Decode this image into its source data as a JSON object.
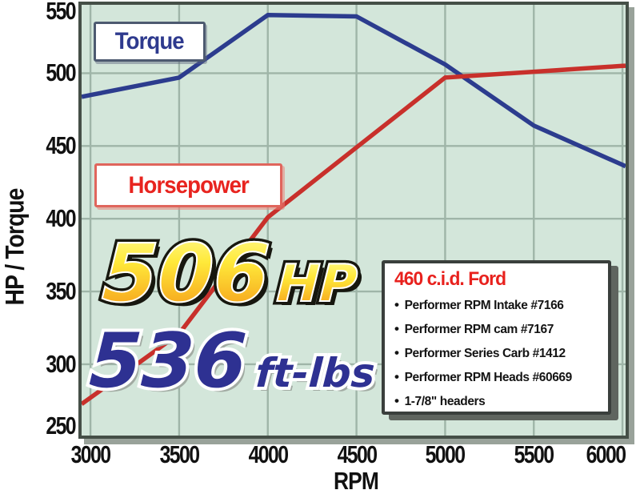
{
  "chart_data": {
    "type": "line",
    "x": [
      3000,
      3500,
      4000,
      4500,
      5000,
      5500,
      6000
    ],
    "series": [
      {
        "name": "Torque",
        "color": "#2c3c8e",
        "values": [
          485,
          497,
          540,
          539,
          506,
          464,
          437
        ]
      },
      {
        "name": "Horsepower",
        "color": "#c8302b",
        "values": [
          277,
          321,
          401,
          449,
          497,
          501,
          505
        ]
      }
    ],
    "xlabel": "RPM",
    "ylabel": "HP / Torque",
    "xlim": [
      2950,
      6050
    ],
    "ylim": [
      250,
      547
    ],
    "x_ticks": [
      3000,
      3500,
      4000,
      4500,
      5000,
      5500,
      6000
    ],
    "y_ticks": [
      250,
      300,
      350,
      400,
      450,
      500,
      550
    ],
    "y_gridlines": [
      300,
      350,
      400,
      450,
      500
    ],
    "grid": true,
    "legend_position": "boxed labels inside plot"
  },
  "axis": {
    "y_title": "HP / Torque",
    "x_title": "RPM"
  },
  "legend": {
    "torque_label": "Torque",
    "horsepower_label": "Horsepower"
  },
  "stats": {
    "hp_value": "506",
    "hp_unit": "HP",
    "torque_value": "536",
    "torque_unit": "ft-lbs"
  },
  "spec_box": {
    "bullet": "•",
    "title": "460 c.i.d. Ford",
    "items": [
      "Performer RPM Intake #7166",
      "Performer RPM cam #7167",
      "Performer Series Carb #1412",
      "Performer RPM Heads #60669",
      "1-7/8\" headers"
    ]
  },
  "colors": {
    "plot_bg": "#d3e6da",
    "grid": "#9fb5a8",
    "plot_border": "#454f47",
    "torque_line": "#2c3c8e",
    "hp_line": "#c8302b",
    "torque_text": "#2e3a8e",
    "hp_text": "#e8241f",
    "stat_gold_top": "#fff884",
    "stat_gold_bottom": "#f6a31c",
    "stat_blue": "#2e3192",
    "spec_title": "#e8211d"
  }
}
